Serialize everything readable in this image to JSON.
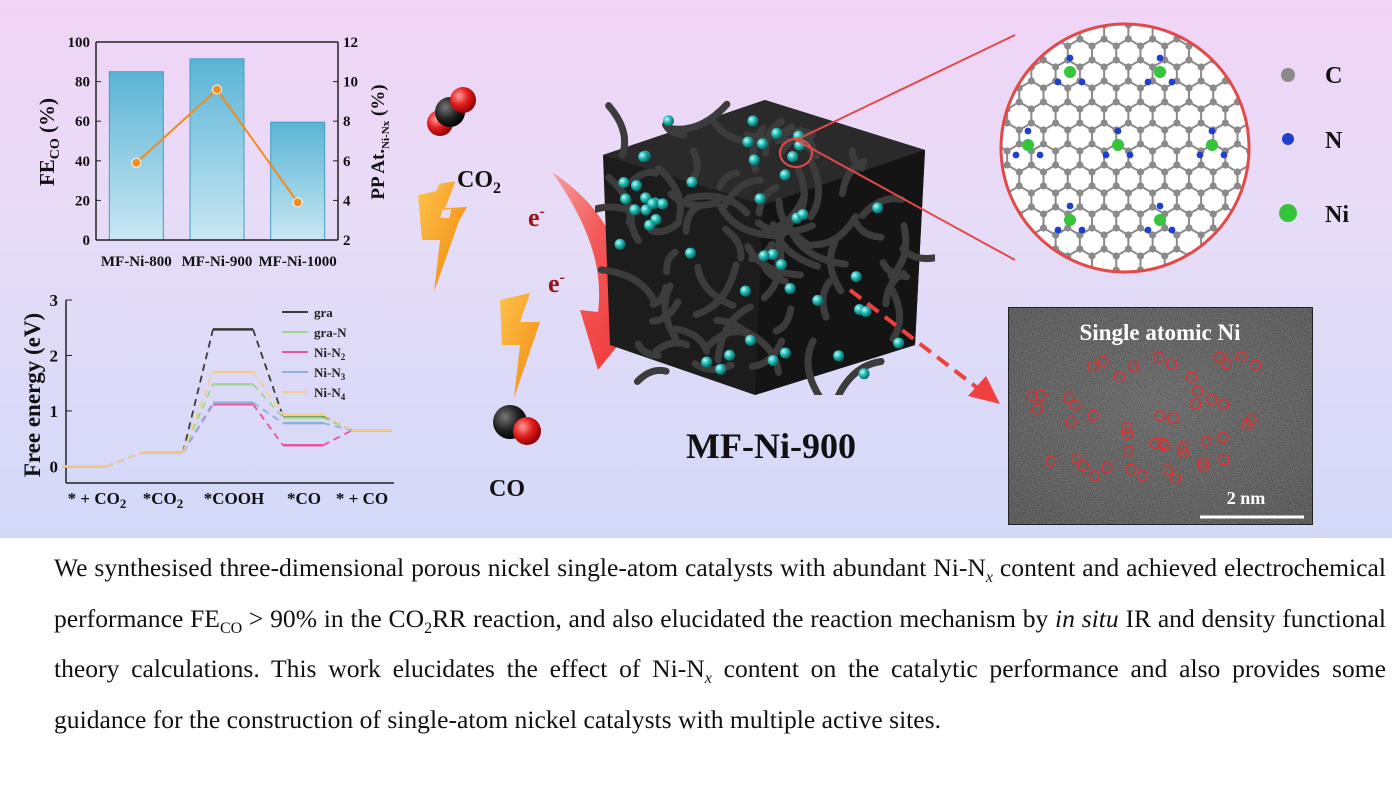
{
  "bar_chart": {
    "type": "bar",
    "categories": [
      "MF-Ni-800",
      "MF-Ni-900",
      "MF-Ni-1000"
    ],
    "fe_co_values": [
      85,
      91.5,
      59.5
    ],
    "pp_values": [
      5.9,
      9.6,
      3.9
    ],
    "left_ylabel_main": "FE",
    "left_ylabel_sub": "CO",
    "left_ylabel_tail": " (%)",
    "right_ylabel_main": "PP At.",
    "right_ylabel_sub": "Ni-Nx",
    "right_ylabel_tail": " (%)",
    "left_ylim": [
      0,
      100
    ],
    "right_ylim": [
      2,
      12
    ],
    "left_ticks": [
      "0",
      "20",
      "40",
      "60",
      "80",
      "100"
    ],
    "right_ticks": [
      "2",
      "4",
      "6",
      "8",
      "10",
      "12"
    ],
    "bar_color": "#5ab4d6",
    "line_color": "#f28a1c"
  },
  "energy_chart": {
    "type": "line",
    "ylabel": "Free energy (eV)",
    "yticks": [
      "0",
      "1",
      "2",
      "3"
    ],
    "ylim": [
      -0.3,
      3
    ],
    "xlabels": [
      "* + CO",
      "*CO",
      "*COOH",
      "*CO",
      "* + CO"
    ],
    "xlabel_subs": [
      "2",
      "2",
      "",
      "",
      ""
    ],
    "series": [
      {
        "name": "gra",
        "color": "#3a3a3a",
        "values": [
          0,
          0.25,
          2.47,
          0.9,
          0.65
        ]
      },
      {
        "name": "gra-N",
        "color": "#9ed68d",
        "values": [
          0,
          0.25,
          1.48,
          0.88,
          0.65
        ]
      },
      {
        "name": "Ni-N",
        "sub": "2",
        "color": "#e8559f",
        "values": [
          0,
          0.25,
          1.12,
          0.38,
          0.65
        ]
      },
      {
        "name": "Ni-N",
        "sub": "3",
        "color": "#8fb0d8",
        "values": [
          0,
          0.25,
          1.15,
          0.78,
          0.65
        ]
      },
      {
        "name": "Ni-N",
        "sub": "4",
        "color": "#f8cc8a",
        "values": [
          0,
          0.25,
          1.7,
          0.93,
          0.65
        ]
      }
    ]
  },
  "labels": {
    "co2_main": "CO",
    "co2_sub": "2",
    "co": "CO",
    "electron_1": "e",
    "electron_2": "e",
    "electron_sup": "-",
    "material": "MF-Ni-900",
    "legend_c": "C",
    "legend_n": "N",
    "legend_ni": "Ni",
    "tem_title": "Single atomic Ni",
    "scale_bar": "2 nm"
  },
  "colors": {
    "carbon": "#8a8a8a",
    "nitrogen": "#1f3fd0",
    "nickel": "#35c43a",
    "arrow": "#f04545",
    "lightning": "#f8a21e",
    "o_atom": "#e02020"
  },
  "caption": {
    "s1": "We synthesised three-dimensional porous nickel single-atom catalysts with abundant Ni-N",
    "s1_sub": "x",
    "s2": " content and achieved electrochemical performance FE",
    "s2_sub": "CO",
    "s3": " > 90% in the CO",
    "s3_sub": "2",
    "s4": "RR reaction, and also elucidated the reaction mechanism by ",
    "s4_italic": "in situ",
    "s5": " IR and density functional theory calculations. This work elucidates the effect of Ni-N",
    "s5_sub": "x",
    "s6": " content on the catalytic performance and also provides some guidance for the construction of single-atom nickel catalysts with multiple active sites."
  }
}
